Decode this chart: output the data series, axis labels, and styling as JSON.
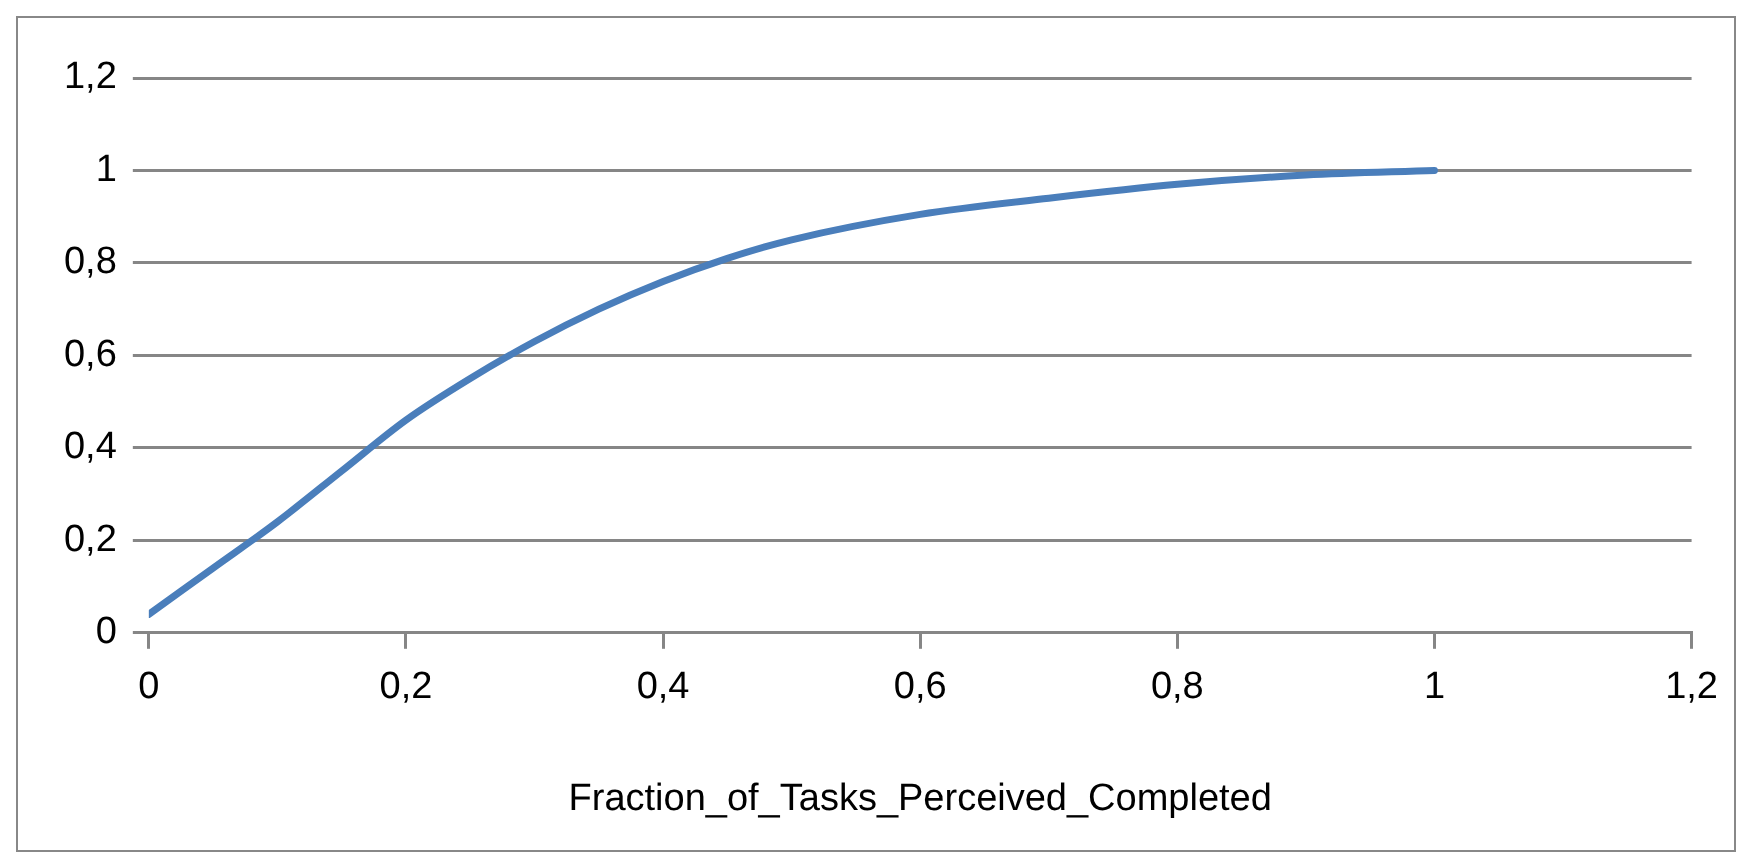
{
  "chart_data": {
    "type": "line",
    "xlabel": "Fraction_of_Tasks_Perceived_Completed",
    "x": [
      0,
      0.05,
      0.1,
      0.15,
      0.2,
      0.25,
      0.3,
      0.35,
      0.4,
      0.45,
      0.5,
      0.6,
      0.7,
      0.8,
      0.9,
      1
    ],
    "series": [
      {
        "color": "#4a7ebb",
        "values": [
          0.04,
          0.14,
          0.24,
          0.35,
          0.46,
          0.55,
          0.63,
          0.7,
          0.76,
          0.81,
          0.85,
          0.905,
          0.94,
          0.97,
          0.99,
          1.0
        ]
      }
    ],
    "xlim": [
      0,
      1.2
    ],
    "ylim": [
      0,
      1.2
    ],
    "xticks": [
      0,
      {
        "value": 0.2,
        "label": "0,2"
      },
      {
        "value": 0.4,
        "label": "0,4"
      },
      {
        "value": 0.6,
        "label": "0,6"
      },
      {
        "value": 0.8,
        "label": "0,8"
      },
      1,
      {
        "value": 1.2,
        "label": "1,2"
      }
    ],
    "yticks": [
      0,
      {
        "value": 0.2,
        "label": "0,2"
      },
      {
        "value": 0.4,
        "label": "0,4"
      },
      {
        "value": 0.6,
        "label": "0,6"
      },
      {
        "value": 0.8,
        "label": "0,8"
      },
      1,
      {
        "value": 1.2,
        "label": "1,2"
      }
    ],
    "grid": "y",
    "legend": false,
    "marker": "none",
    "line_style": "solid"
  }
}
